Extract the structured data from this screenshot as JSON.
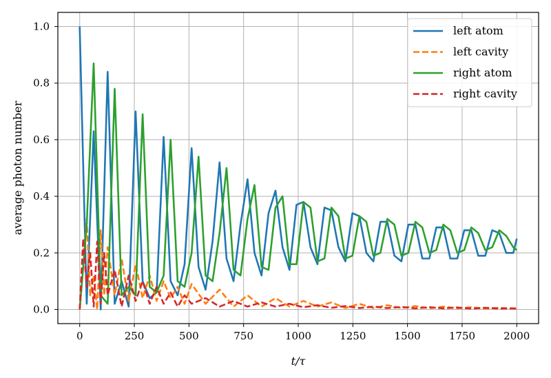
{
  "chart_data": {
    "type": "line",
    "xlabel": "t/τ",
    "ylabel": "average photon number",
    "xlim": [
      -100,
      2100
    ],
    "ylim": [
      -0.05,
      1.05
    ],
    "xticks": [
      0,
      250,
      500,
      750,
      1000,
      1250,
      1500,
      1750,
      2000
    ],
    "xtick_labels": [
      "0",
      "250",
      "500",
      "750",
      "1000",
      "1250",
      "1500",
      "1750",
      "2000"
    ],
    "yticks": [
      0.0,
      0.2,
      0.4,
      0.6,
      0.8,
      1.0
    ],
    "ytick_labels": [
      "0.0",
      "0.2",
      "0.4",
      "0.6",
      "0.8",
      "1.0"
    ],
    "grid": true,
    "legend_position": "upper-right",
    "series": [
      {
        "name": "left atom",
        "color": "#1f77b4",
        "dash": "solid",
        "x": [
          0,
          32,
          64,
          96,
          128,
          160,
          192,
          224,
          256,
          288,
          320,
          352,
          384,
          416,
          448,
          480,
          512,
          544,
          576,
          608,
          640,
          672,
          704,
          736,
          768,
          800,
          832,
          864,
          896,
          928,
          960,
          992,
          1024,
          1056,
          1088,
          1120,
          1152,
          1184,
          1216,
          1248,
          1280,
          1312,
          1344,
          1376,
          1408,
          1440,
          1472,
          1504,
          1536,
          1568,
          1600,
          1632,
          1664,
          1696,
          1728,
          1760,
          1792,
          1824,
          1856,
          1888,
          1920,
          1952,
          1984,
          2000
        ],
        "y": [
          1.0,
          0.02,
          0.63,
          0.0,
          0.84,
          0.02,
          0.1,
          0.01,
          0.7,
          0.1,
          0.04,
          0.06,
          0.61,
          0.1,
          0.05,
          0.16,
          0.57,
          0.15,
          0.07,
          0.24,
          0.52,
          0.18,
          0.1,
          0.3,
          0.46,
          0.2,
          0.12,
          0.34,
          0.42,
          0.22,
          0.14,
          0.37,
          0.38,
          0.22,
          0.16,
          0.36,
          0.35,
          0.22,
          0.17,
          0.34,
          0.33,
          0.2,
          0.17,
          0.31,
          0.31,
          0.19,
          0.17,
          0.3,
          0.3,
          0.18,
          0.18,
          0.29,
          0.29,
          0.18,
          0.18,
          0.28,
          0.28,
          0.19,
          0.19,
          0.28,
          0.27,
          0.2,
          0.2,
          0.25
        ]
      },
      {
        "name": "left cavity",
        "color": "#ff7f0e",
        "dash": "dashed",
        "x": [
          0,
          16,
          32,
          48,
          64,
          80,
          96,
          112,
          128,
          160,
          192,
          224,
          256,
          288,
          320,
          352,
          384,
          416,
          448,
          480,
          512,
          576,
          640,
          704,
          768,
          832,
          896,
          960,
          1024,
          1088,
          1152,
          1216,
          1280,
          1344,
          1408,
          1472,
          1536,
          1600,
          1664,
          1728,
          1792,
          1856,
          1920,
          1984,
          2000
        ],
        "y": [
          0.0,
          0.15,
          0.32,
          0.05,
          0.12,
          0.0,
          0.28,
          0.05,
          0.22,
          0.05,
          0.18,
          0.03,
          0.16,
          0.04,
          0.12,
          0.03,
          0.1,
          0.04,
          0.08,
          0.02,
          0.09,
          0.02,
          0.07,
          0.01,
          0.05,
          0.01,
          0.04,
          0.01,
          0.03,
          0.01,
          0.025,
          0.005,
          0.02,
          0.005,
          0.015,
          0.005,
          0.012,
          0.004,
          0.01,
          0.004,
          0.008,
          0.003,
          0.006,
          0.003,
          0.003
        ]
      },
      {
        "name": "right atom",
        "color": "#2ca02c",
        "dash": "solid",
        "x": [
          0,
          32,
          64,
          96,
          128,
          160,
          192,
          224,
          256,
          288,
          320,
          352,
          384,
          416,
          448,
          480,
          512,
          544,
          576,
          608,
          640,
          672,
          704,
          736,
          768,
          800,
          832,
          864,
          896,
          928,
          960,
          992,
          1024,
          1056,
          1088,
          1120,
          1152,
          1184,
          1216,
          1248,
          1280,
          1312,
          1344,
          1376,
          1408,
          1440,
          1472,
          1504,
          1536,
          1568,
          1600,
          1632,
          1664,
          1696,
          1728,
          1760,
          1792,
          1824,
          1856,
          1888,
          1920,
          1952,
          1984,
          2000
        ],
        "y": [
          0.0,
          0.3,
          0.87,
          0.05,
          0.02,
          0.78,
          0.05,
          0.08,
          0.05,
          0.69,
          0.08,
          0.06,
          0.12,
          0.6,
          0.1,
          0.08,
          0.2,
          0.54,
          0.12,
          0.1,
          0.27,
          0.5,
          0.14,
          0.12,
          0.32,
          0.44,
          0.15,
          0.14,
          0.36,
          0.4,
          0.16,
          0.16,
          0.38,
          0.36,
          0.17,
          0.18,
          0.36,
          0.33,
          0.18,
          0.19,
          0.33,
          0.31,
          0.19,
          0.2,
          0.32,
          0.3,
          0.19,
          0.2,
          0.31,
          0.29,
          0.2,
          0.21,
          0.3,
          0.28,
          0.2,
          0.21,
          0.29,
          0.27,
          0.21,
          0.22,
          0.28,
          0.26,
          0.22,
          0.21
        ]
      },
      {
        "name": "right cavity",
        "color": "#d62728",
        "dash": "dashed",
        "x": [
          0,
          16,
          32,
          48,
          64,
          80,
          96,
          112,
          128,
          160,
          192,
          224,
          256,
          288,
          320,
          352,
          384,
          416,
          448,
          480,
          512,
          576,
          640,
          704,
          768,
          832,
          896,
          960,
          1024,
          1088,
          1152,
          1216,
          1280,
          1344,
          1408,
          1472,
          1536,
          1600,
          1664,
          1728,
          1792,
          1856,
          1920,
          1984,
          2000
        ],
        "y": [
          0.0,
          0.25,
          0.08,
          0.2,
          0.01,
          0.24,
          0.02,
          0.2,
          0.05,
          0.14,
          0.01,
          0.12,
          0.03,
          0.1,
          0.02,
          0.08,
          0.02,
          0.06,
          0.01,
          0.05,
          0.02,
          0.04,
          0.01,
          0.03,
          0.01,
          0.025,
          0.01,
          0.02,
          0.008,
          0.015,
          0.006,
          0.012,
          0.005,
          0.01,
          0.005,
          0.009,
          0.004,
          0.008,
          0.004,
          0.007,
          0.003,
          0.006,
          0.003,
          0.004,
          0.003
        ]
      }
    ]
  }
}
